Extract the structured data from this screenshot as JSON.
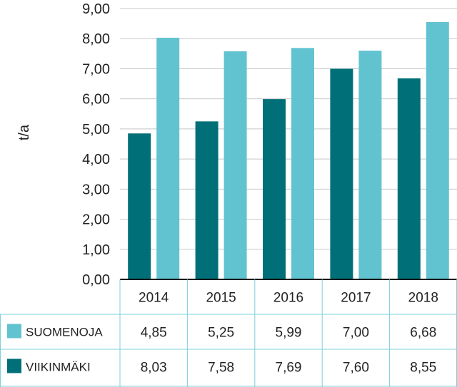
{
  "chart_data": {
    "type": "bar",
    "title": "",
    "xlabel": "",
    "ylabel": "t/a",
    "ylim": [
      0,
      9
    ],
    "yticks": [
      "0,00",
      "1,00",
      "2,00",
      "3,00",
      "4,00",
      "5,00",
      "6,00",
      "7,00",
      "8,00",
      "9,00"
    ],
    "categories": [
      "2014",
      "2015",
      "2016",
      "2017",
      "2018"
    ],
    "grid": true,
    "legend": "data-table-rows",
    "series": [
      {
        "name": "SUOMENOJA",
        "legend_color": "#62c3d0",
        "bar_color": "#006f78",
        "values": [
          4.85,
          5.25,
          5.99,
          7.0,
          6.68
        ],
        "labels": [
          "4,85",
          "5,25",
          "5,99",
          "7,00",
          "6,68"
        ]
      },
      {
        "name": "VIIKINMÄKI",
        "legend_color": "#006f78",
        "bar_color": "#62c3d0",
        "values": [
          8.03,
          7.58,
          7.69,
          7.6,
          8.55
        ],
        "labels": [
          "8,03",
          "7,58",
          "7,69",
          "7,60",
          "8,55"
        ]
      }
    ]
  }
}
